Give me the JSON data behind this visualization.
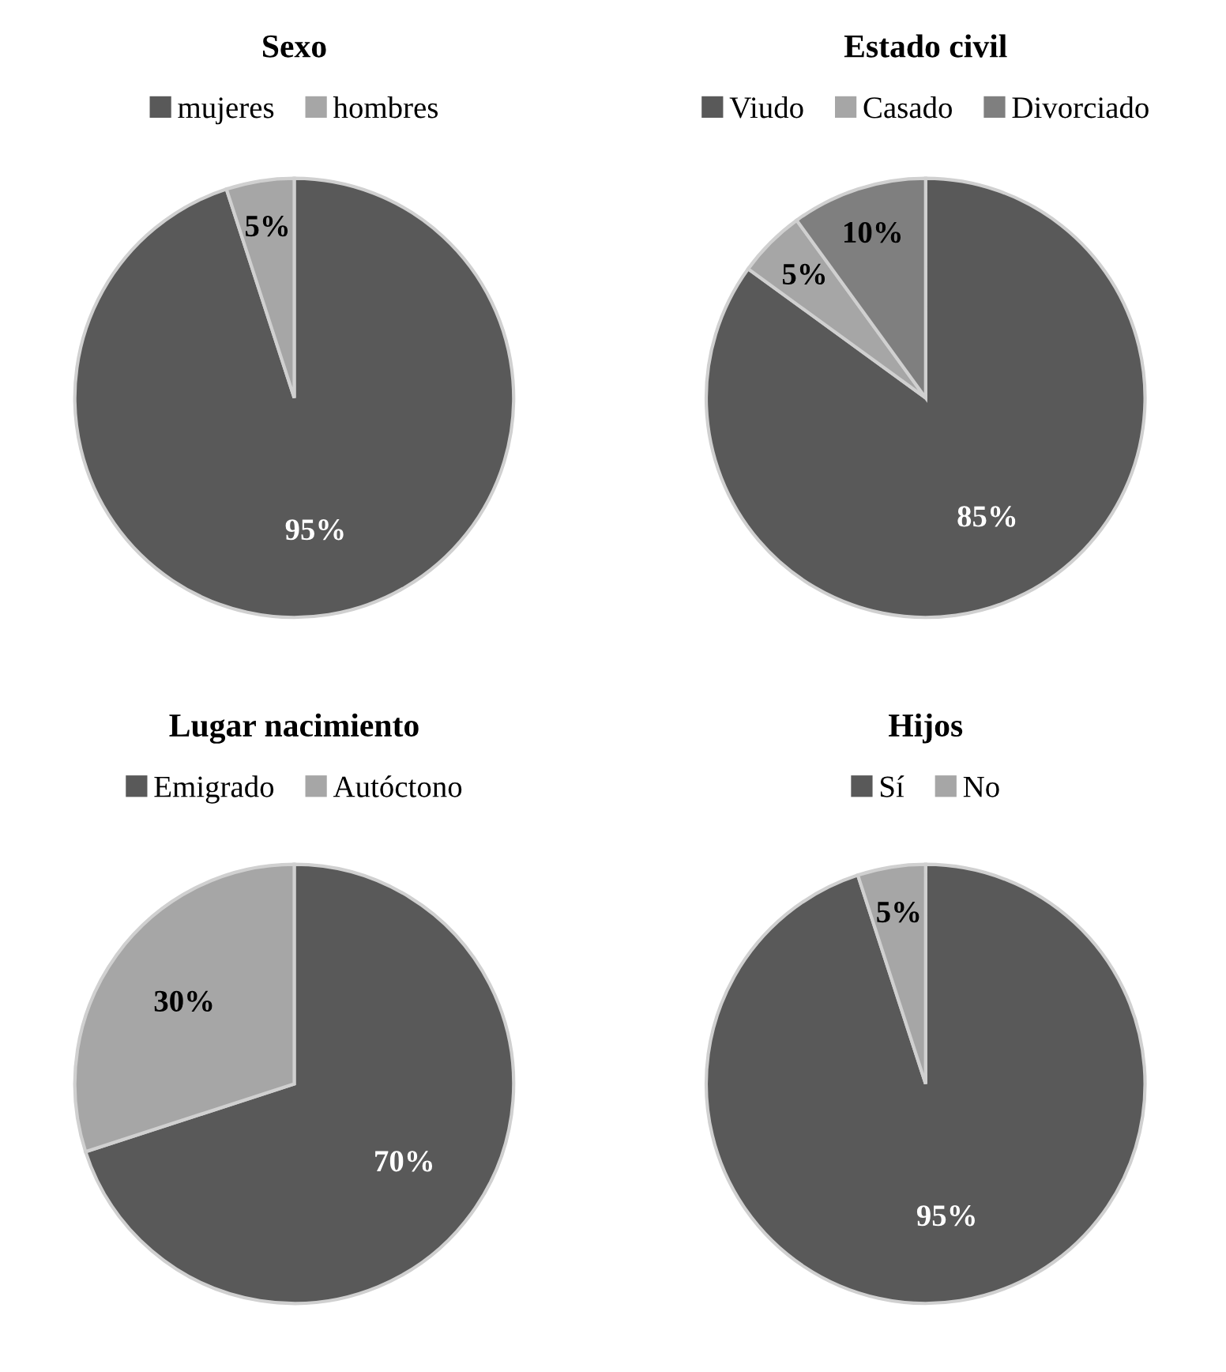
{
  "chart_data": [
    {
      "type": "pie",
      "title": "Sexo",
      "categories": [
        "mujeres",
        "hombres"
      ],
      "values": [
        95,
        5
      ],
      "colors": [
        "#595959",
        "#a6a6a6"
      ],
      "value_labels": [
        "95%",
        "5%"
      ],
      "legend": "top"
    },
    {
      "type": "pie",
      "title": "Estado civil",
      "categories": [
        "Viudo",
        "Casado",
        "Divorciado"
      ],
      "values": [
        85,
        5,
        10
      ],
      "colors": [
        "#595959",
        "#a6a6a6",
        "#7f7f7f"
      ],
      "value_labels": [
        "85%",
        "5%",
        "10%"
      ],
      "legend": "top"
    },
    {
      "type": "pie",
      "title": "Lugar nacimiento",
      "categories": [
        "Emigrado",
        "Autóctono"
      ],
      "values": [
        70,
        30
      ],
      "colors": [
        "#595959",
        "#a6a6a6"
      ],
      "value_labels": [
        "70%",
        "30%"
      ],
      "legend": "top"
    },
    {
      "type": "pie",
      "title": "Hijos",
      "categories": [
        "Sí",
        "No"
      ],
      "values": [
        95,
        5
      ],
      "colors": [
        "#595959",
        "#a6a6a6"
      ],
      "value_labels": [
        "95%",
        "5%"
      ],
      "legend": "top"
    }
  ]
}
